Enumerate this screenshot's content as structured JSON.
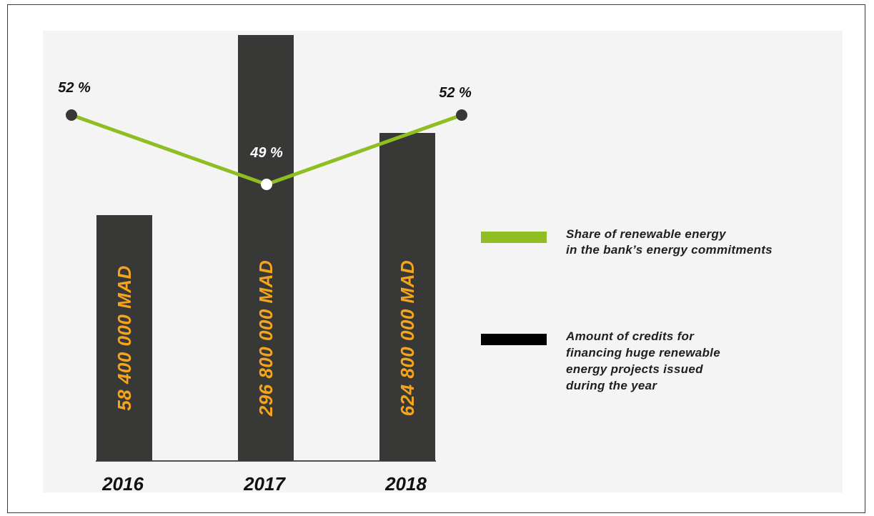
{
  "colors": {
    "bar": "#383836",
    "line": "#8fbd22",
    "bar_label": "#f5a51d",
    "marker_dark": "#383836",
    "marker_light": "#ffffff",
    "background_panel": "#f4f4f4"
  },
  "chart_data": {
    "type": "bar",
    "categories": [
      "2016",
      "2017",
      "2018"
    ],
    "series": [
      {
        "name": "Amount of credits for financing huge renewable energy projects issued during the year",
        "type": "bar",
        "values": [
          58400000,
          296800000,
          624800000
        ],
        "labels": [
          "58 400 000 MAD",
          "296 800 000 MAD",
          "624 800 000 MAD"
        ]
      },
      {
        "name": "Share of renewable energy in the bank’s energy commitments",
        "type": "line",
        "values": [
          52,
          49,
          52
        ],
        "labels": [
          "52 %",
          "49 %",
          "52 %"
        ]
      }
    ],
    "legend": {
      "position": "right",
      "line_label_lines": [
        "Share of renewable energy",
        "in the bank’s energy commitments"
      ],
      "bar_label_lines": [
        "Amount of credits for",
        "financing huge renewable",
        "energy projects issued",
        "during the year"
      ]
    },
    "grid": false
  }
}
